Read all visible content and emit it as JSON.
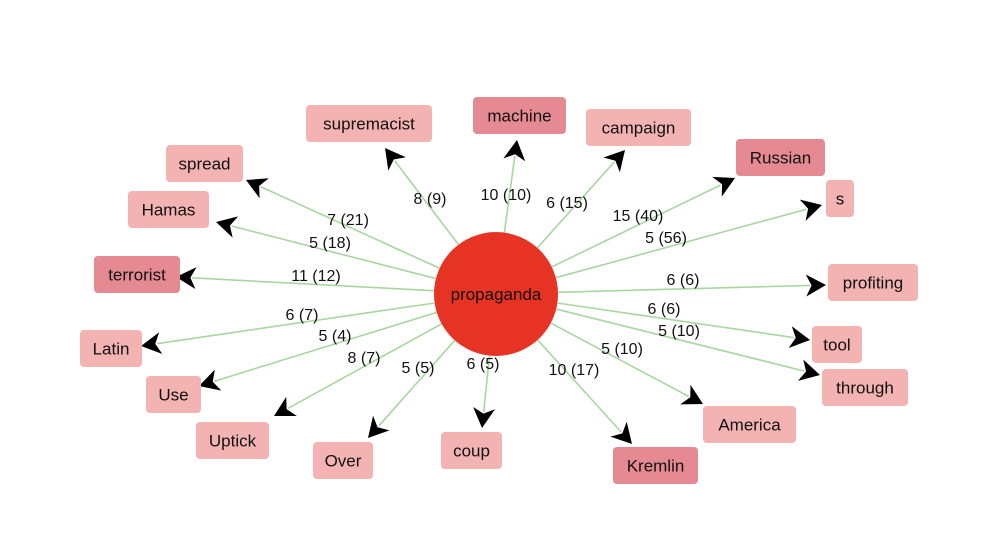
{
  "center": {
    "label": "propaganda",
    "color": "#e63323"
  },
  "edge_color": "#a9d6a0",
  "node_colors": {
    "light": "#f4b3b3",
    "dark": "#e58a92"
  },
  "nodes": [
    {
      "id": "supremacist",
      "label": "supremacist",
      "shade": "light",
      "edge_label": "8 (9)"
    },
    {
      "id": "machine",
      "label": "machine",
      "shade": "dark",
      "edge_label": "10 (10)"
    },
    {
      "id": "campaign",
      "label": "campaign",
      "shade": "light",
      "edge_label": "6 (15)"
    },
    {
      "id": "russian",
      "label": "Russian",
      "shade": "dark",
      "edge_label": "15 (40)"
    },
    {
      "id": "s",
      "label": "s",
      "shade": "light",
      "edge_label": "5 (56)"
    },
    {
      "id": "profiting",
      "label": "profiting",
      "shade": "light",
      "edge_label": "6 (6)"
    },
    {
      "id": "tool",
      "label": "tool",
      "shade": "light",
      "edge_label": "6 (6)"
    },
    {
      "id": "through",
      "label": "through",
      "shade": "light",
      "edge_label": "5 (10)"
    },
    {
      "id": "america",
      "label": "America",
      "shade": "light",
      "edge_label": "5 (10)"
    },
    {
      "id": "kremlin",
      "label": "Kremlin",
      "shade": "dark",
      "edge_label": "10 (17)"
    },
    {
      "id": "coup",
      "label": "coup",
      "shade": "light",
      "edge_label": "6 (5)"
    },
    {
      "id": "over",
      "label": "Over",
      "shade": "light",
      "edge_label": "5 (5)"
    },
    {
      "id": "uptick",
      "label": "Uptick",
      "shade": "light",
      "edge_label": "8 (7)"
    },
    {
      "id": "use",
      "label": "Use",
      "shade": "light",
      "edge_label": "5 (4)"
    },
    {
      "id": "latin",
      "label": "Latin",
      "shade": "light",
      "edge_label": "6 (7)"
    },
    {
      "id": "terrorist",
      "label": "terrorist",
      "shade": "dark",
      "edge_label": "11 (12)"
    },
    {
      "id": "hamas",
      "label": "Hamas",
      "shade": "light",
      "edge_label": "5 (18)"
    },
    {
      "id": "spread",
      "label": "spread",
      "shade": "light",
      "edge_label": "7 (21)"
    }
  ]
}
